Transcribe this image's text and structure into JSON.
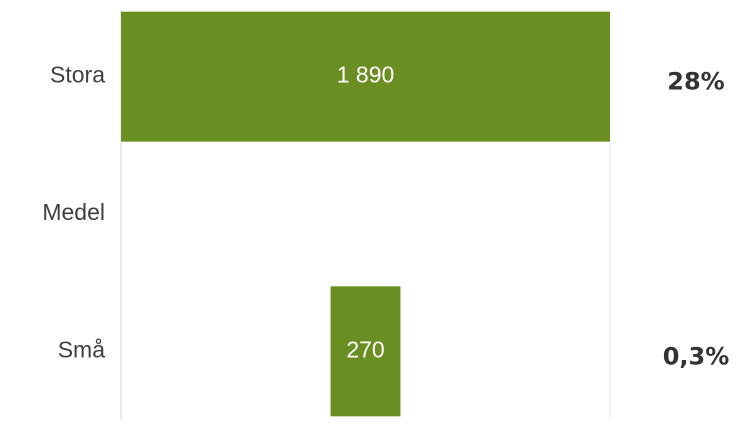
{
  "chart_data": {
    "type": "bar",
    "orientation": "horizontal",
    "stacked": true,
    "categories": [
      "Stora",
      "Medel",
      "Små"
    ],
    "series": [
      {
        "color": "transparent",
        "values": [
          null,
          null,
          810
        ]
      },
      {
        "color": "#6b8e23",
        "values": [
          1890,
          null,
          270
        ],
        "value_labels": [
          "1 890",
          null,
          "270"
        ]
      }
    ],
    "annotations": [
      "28%",
      null,
      "0,3%"
    ],
    "xlim": [
      0,
      1890
    ]
  }
}
